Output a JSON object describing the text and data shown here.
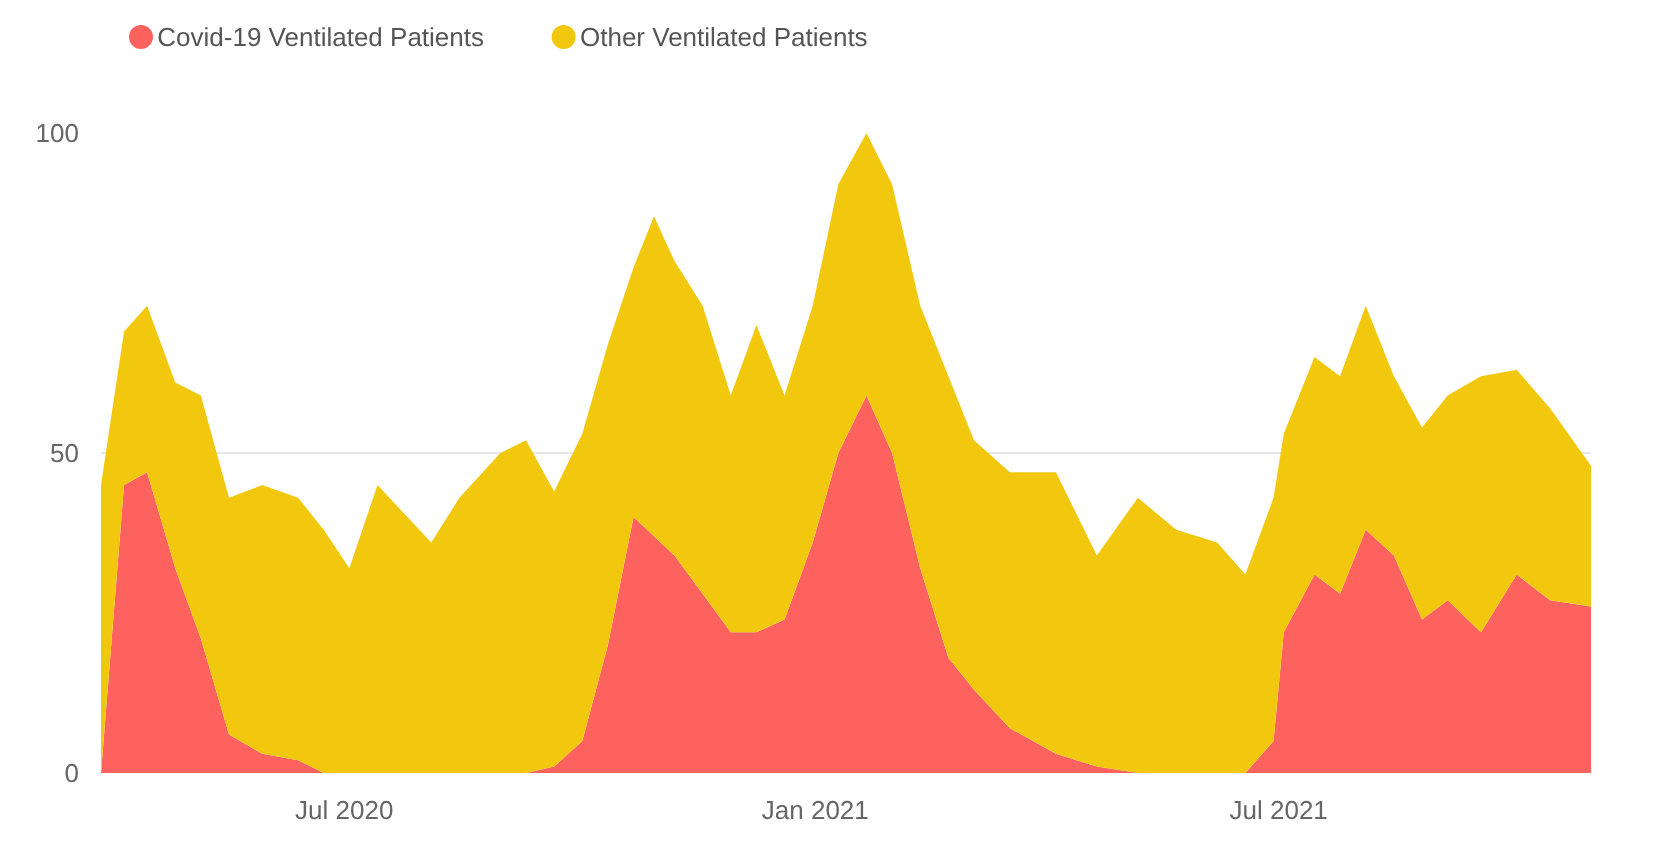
{
  "chart_data": {
    "type": "area",
    "stacked": true,
    "x": [
      "2020-03-28",
      "2020-04-06",
      "2020-04-15",
      "2020-04-26",
      "2020-05-06",
      "2020-05-17",
      "2020-05-30",
      "2020-06-13",
      "2020-06-23",
      "2020-07-03",
      "2020-07-14",
      "2020-08-04",
      "2020-08-15",
      "2020-08-31",
      "2020-09-10",
      "2020-09-21",
      "2020-10-02",
      "2020-10-12",
      "2020-10-22",
      "2020-10-30",
      "2020-11-07",
      "2020-11-18",
      "2020-11-29",
      "2020-12-09",
      "2020-12-20",
      "2020-12-31",
      "2021-01-10",
      "2021-01-21",
      "2021-01-31",
      "2021-02-11",
      "2021-02-22",
      "2021-03-04",
      "2021-03-18",
      "2021-04-05",
      "2021-04-21",
      "2021-05-07",
      "2021-05-22",
      "2021-06-07",
      "2021-06-18",
      "2021-06-29",
      "2021-07-03",
      "2021-07-15",
      "2021-07-25",
      "2021-08-04",
      "2021-08-15",
      "2021-08-26",
      "2021-09-05",
      "2021-09-18",
      "2021-10-02",
      "2021-10-15",
      "2021-10-31"
    ],
    "series": [
      {
        "name": "Covid-19 Ventilated Patients",
        "color": "#fd625e",
        "values": [
          0,
          45,
          47,
          32,
          21,
          6,
          3,
          2,
          0,
          0,
          0,
          0,
          0,
          0,
          0,
          1,
          5,
          20,
          40,
          37,
          34,
          28,
          22,
          22,
          24,
          36,
          50,
          59,
          50,
          32,
          18,
          13,
          7,
          3,
          1,
          0,
          0,
          0,
          0,
          5,
          22,
          31,
          28,
          38,
          34,
          24,
          27,
          22,
          31,
          27,
          26
        ]
      },
      {
        "name": "Other Ventilated Patients",
        "color": "#f2c80f",
        "values": [
          45,
          24,
          26,
          29,
          38,
          37,
          42,
          41,
          38,
          32,
          45,
          36,
          43,
          50,
          52,
          43,
          48,
          47,
          39,
          50,
          46,
          45,
          37,
          48,
          35,
          37,
          42,
          41,
          42,
          41,
          44,
          39,
          40,
          44,
          33,
          43,
          38,
          36,
          31,
          38,
          31,
          34,
          34,
          35,
          28,
          30,
          32,
          40,
          32,
          30,
          22
        ]
      }
    ],
    "xlim": [
      "2020-03-28",
      "2021-10-31"
    ],
    "xticks": [
      {
        "value": "2020-07-01",
        "label": "Jul 2020"
      },
      {
        "value": "2021-01-01",
        "label": "Jan 2021"
      },
      {
        "value": "2021-07-01",
        "label": "Jul 2021"
      }
    ],
    "ylim": [
      0,
      100
    ],
    "yticks": [
      0,
      50,
      100
    ],
    "grid": "y",
    "legend": "top left"
  }
}
